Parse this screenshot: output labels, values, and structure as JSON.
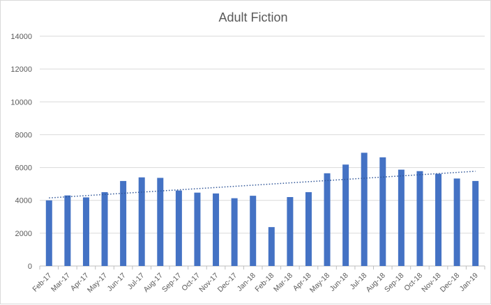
{
  "chart_data": {
    "type": "bar",
    "title": "Adult Fiction",
    "xlabel": "",
    "ylabel": "",
    "ylim": [
      0,
      14000
    ],
    "yticks": [
      0,
      2000,
      4000,
      6000,
      8000,
      10000,
      12000,
      14000
    ],
    "grid": true,
    "legend": "none",
    "categories": [
      "Feb-17",
      "Mar-17",
      "Apr-17",
      "May-17",
      "Jun-17",
      "Jul-17",
      "Aug-17",
      "Sep-17",
      "Oct-17",
      "Nov-17",
      "Dec-17",
      "Jan-18",
      "Feb-18",
      "Mar-18",
      "Apr-18",
      "May-18",
      "Jun-18",
      "Jul-18",
      "Aug-18",
      "Sep-18",
      "Oct-18",
      "Nov-18",
      "Dec-18",
      "Jan-19"
    ],
    "series": [
      {
        "values": [
          4000,
          4300,
          4180,
          4500,
          5180,
          5400,
          5370,
          4600,
          4470,
          4420,
          4130,
          4280,
          2370,
          4200,
          4500,
          5650,
          6180,
          6900,
          6620,
          5870,
          5780,
          5620,
          5330,
          5180
        ],
        "color": "#4472c4"
      }
    ],
    "trendline": {
      "type": "linear",
      "style": "dotted",
      "color": "#2f5597"
    }
  }
}
